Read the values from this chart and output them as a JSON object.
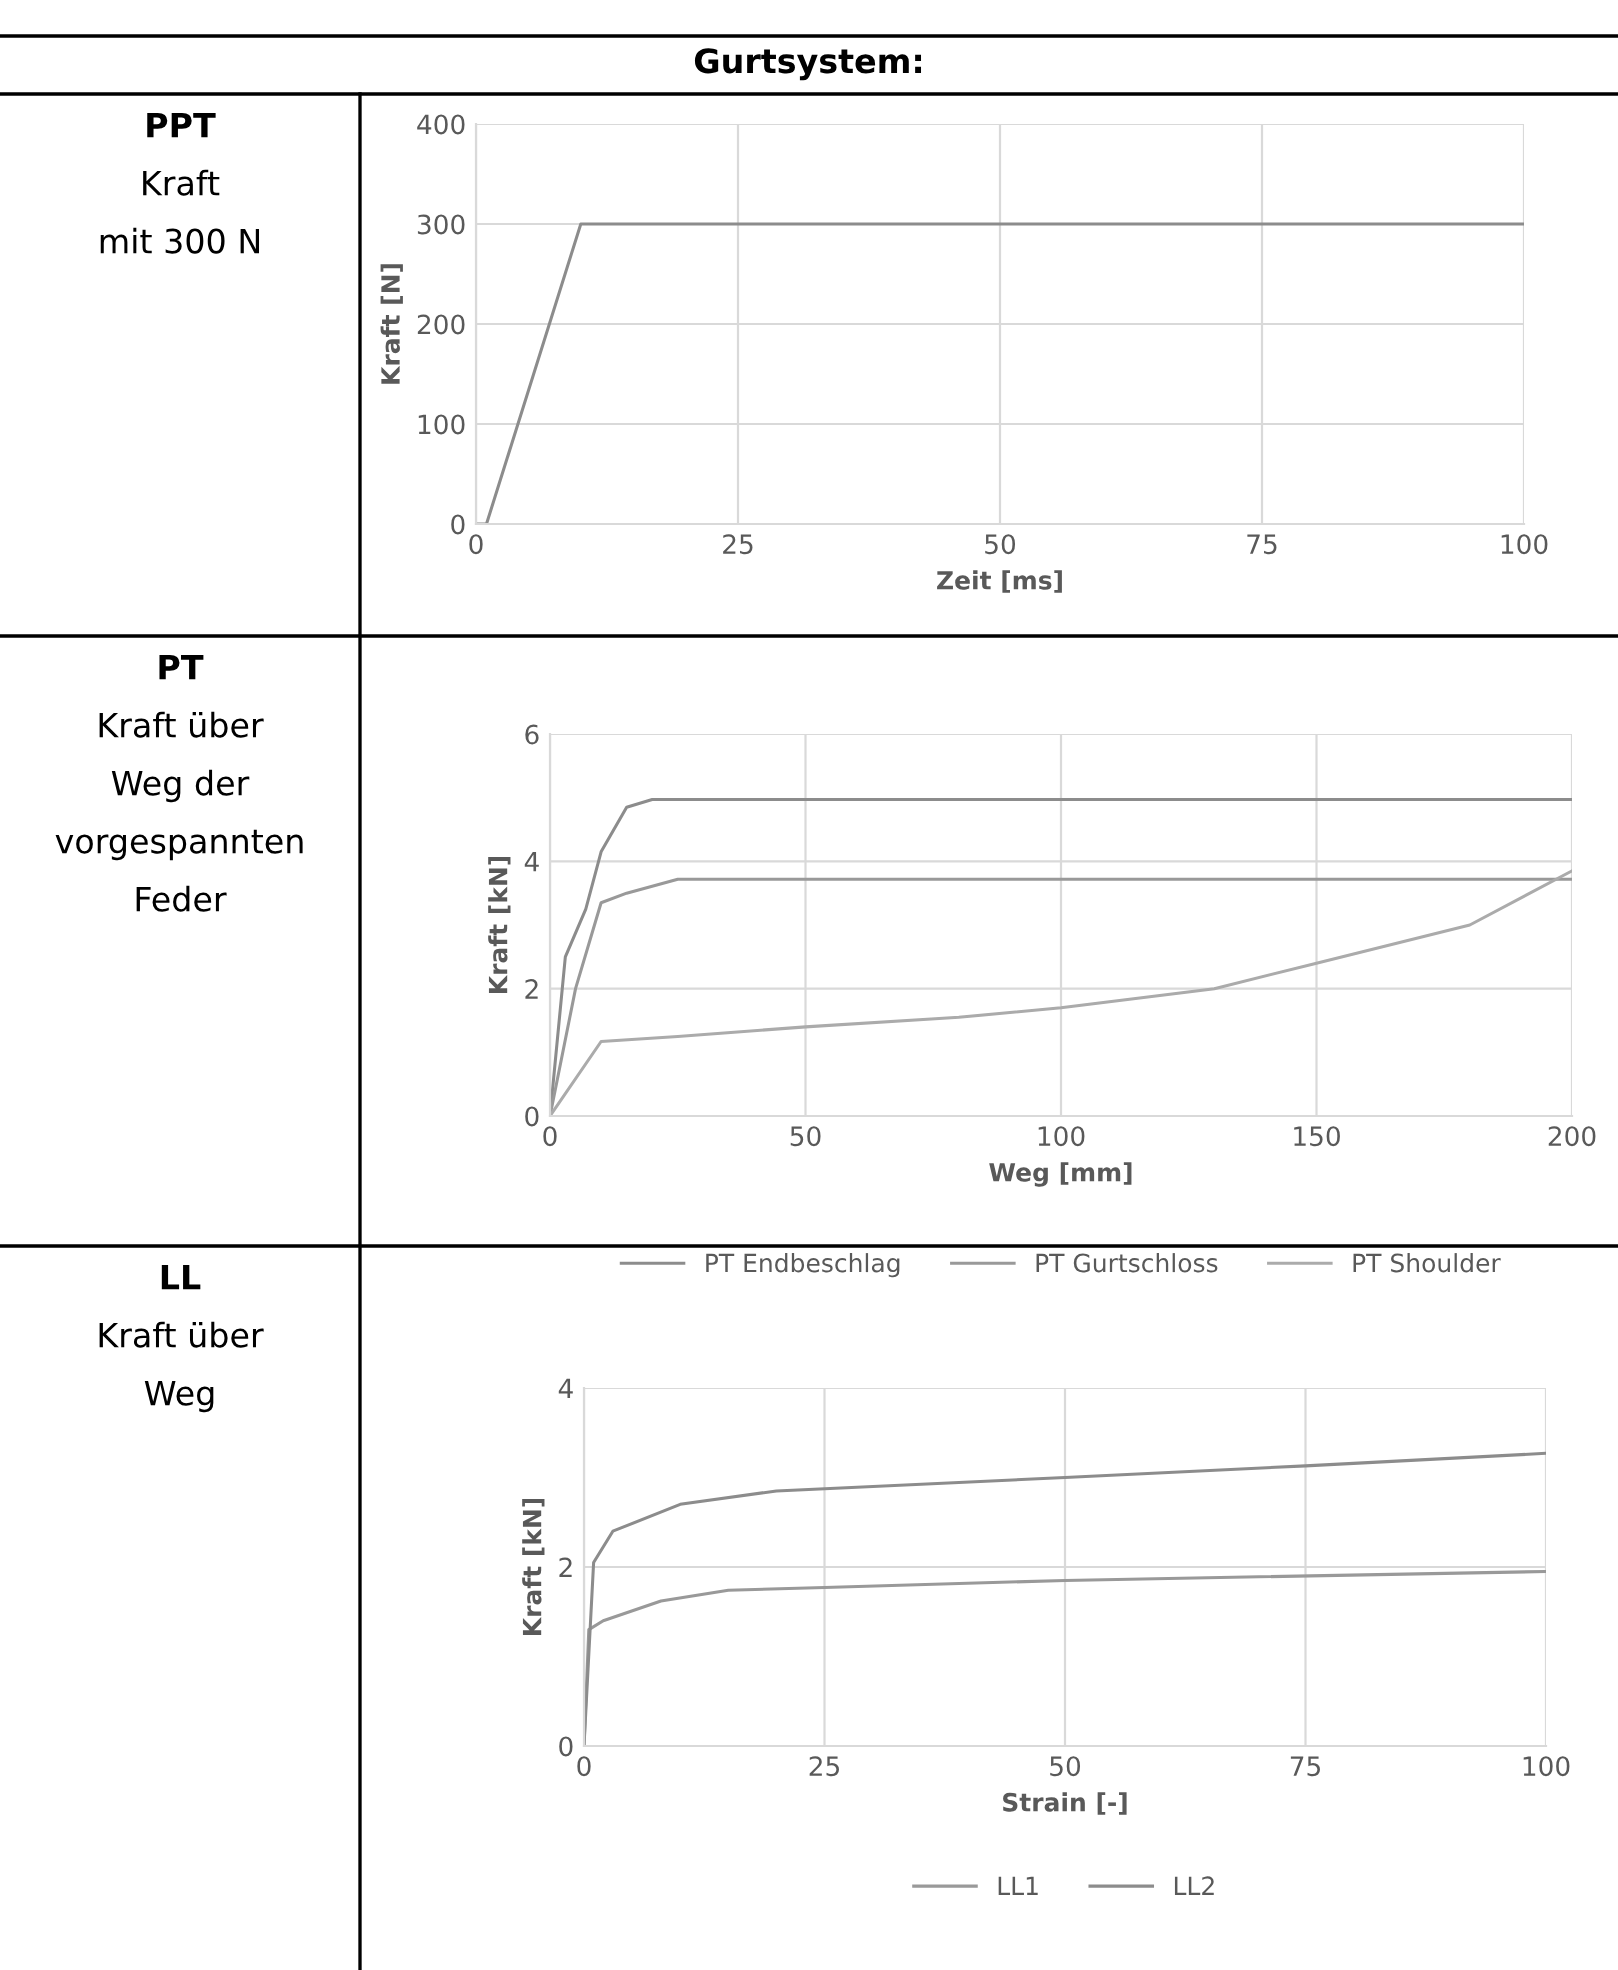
{
  "chart_data": [
    {
      "type": "line",
      "title": "Gurtsystem:",
      "annotations": [
        "PPT",
        "Kraft",
        "mit 300 N"
      ],
      "xlabel": "Zeit [ms]",
      "ylabel": "Kraft [N]",
      "xlim": [
        0,
        100
      ],
      "ylim": [
        0,
        400
      ],
      "xticks": [
        0,
        25,
        50,
        75,
        100
      ],
      "yticks": [
        0,
        100,
        200,
        300,
        400
      ],
      "grid": true,
      "legend": false,
      "series": [
        {
          "color": "#8c8c8c",
          "x": [
            0,
            1,
            10,
            100
          ],
          "values": [
            0,
            0,
            300,
            300
          ]
        }
      ]
    },
    {
      "type": "line",
      "annotations": [
        "PT",
        "Kraft über",
        "Weg der",
        "vorgespannten",
        "Feder"
      ],
      "xlabel": "Weg [mm]",
      "ylabel": "Kraft [kN]",
      "xlim": [
        0,
        200
      ],
      "ylim": [
        0,
        6
      ],
      "xticks": [
        0,
        50,
        100,
        150,
        200
      ],
      "yticks": [
        0,
        2,
        4,
        6
      ],
      "grid": true,
      "legend": "bottom",
      "series": [
        {
          "name": "PT Endbeschlag",
          "color": "#8c8c8c",
          "x": [
            0,
            3,
            7,
            10,
            15,
            20,
            200
          ],
          "values": [
            0,
            2.5,
            3.25,
            4.15,
            4.85,
            4.97,
            4.97
          ]
        },
        {
          "name": "PT Gurtschloss",
          "color": "#999999",
          "x": [
            0,
            5,
            10,
            15,
            25,
            200
          ],
          "values": [
            0,
            2,
            3.35,
            3.5,
            3.72,
            3.72
          ]
        },
        {
          "name": "PT Shoulder",
          "color": "#ababab",
          "x": [
            0,
            10,
            25,
            50,
            80,
            100,
            130,
            150,
            180,
            200
          ],
          "values": [
            0,
            1.17,
            1.25,
            1.4,
            1.55,
            1.7,
            2.0,
            2.4,
            3.0,
            3.85
          ]
        }
      ]
    },
    {
      "type": "line",
      "annotations": [
        "LL",
        "Kraft über",
        "Weg"
      ],
      "xlabel": "Strain [-]",
      "ylabel": "Kraft [kN]",
      "xlim": [
        0,
        100
      ],
      "ylim": [
        0,
        4
      ],
      "xticks": [
        0,
        25,
        50,
        75,
        100
      ],
      "yticks": [
        0,
        2,
        4
      ],
      "grid": true,
      "legend": "bottom",
      "series": [
        {
          "name": "LL1",
          "color": "#999999",
          "x": [
            0,
            0.5,
            2,
            8,
            15,
            25,
            50,
            100
          ],
          "values": [
            0,
            1.3,
            1.4,
            1.62,
            1.74,
            1.77,
            1.85,
            1.95
          ]
        },
        {
          "name": "LL2",
          "color": "#8c8c8c",
          "x": [
            0,
            1,
            3,
            10,
            20,
            50,
            75,
            100
          ],
          "values": [
            0,
            2.05,
            2.4,
            2.7,
            2.85,
            3.0,
            3.13,
            3.27
          ]
        }
      ]
    }
  ]
}
